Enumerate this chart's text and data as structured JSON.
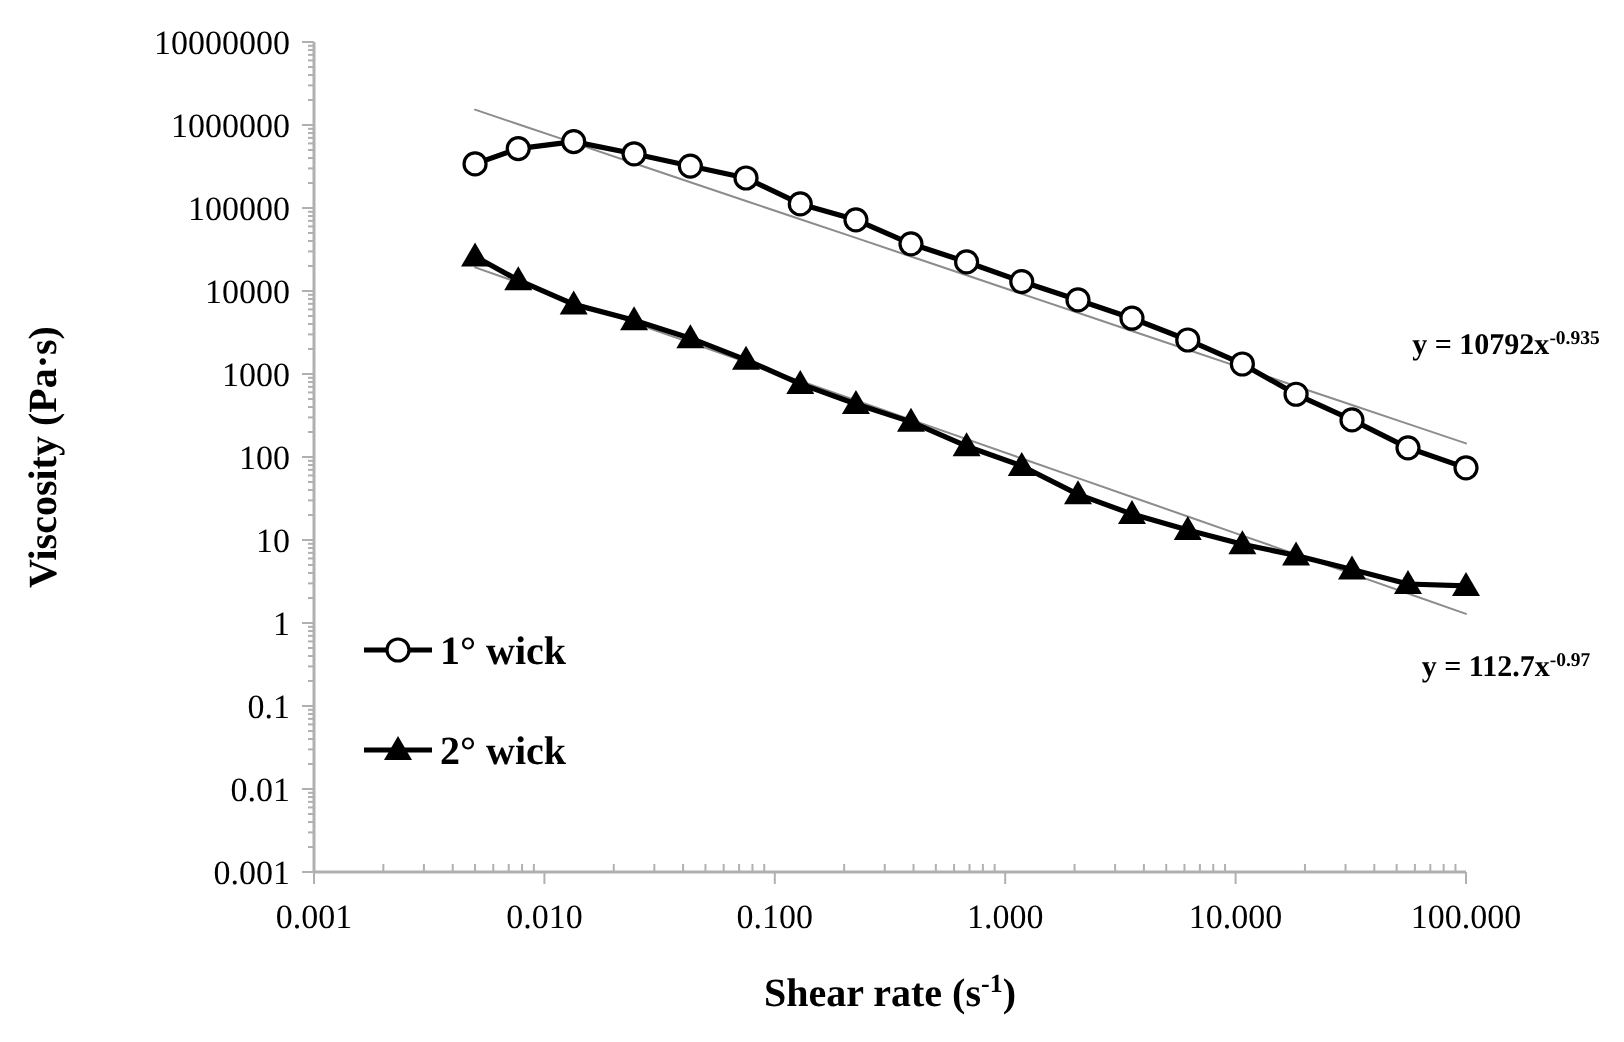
{
  "chart_data": {
    "type": "line",
    "xlabel": "Shear rate (s$^{-1}$)",
    "ylabel": "Viscosity (Pa·s)",
    "log": "xy",
    "grid": false,
    "legend": "bottom left",
    "xlim": [
      0.001,
      100
    ],
    "xticks": [
      0.001,
      {
        "value": 0.01,
        "label": "0.010"
      },
      {
        "value": 0.1,
        "label": "0.100"
      },
      {
        "value": 1,
        "label": "1.000"
      },
      {
        "value": 10,
        "label": "10.000"
      },
      {
        "value": 100,
        "label": "100.000"
      }
    ],
    "ylim": [
      0.001,
      10000000
    ],
    "yticks": [
      0.001,
      0.01,
      0.1,
      1,
      10,
      100,
      1000,
      10000,
      100000,
      1000000,
      10000000
    ],
    "x": [
      0.005,
      0.0077,
      0.0134,
      0.0245,
      0.043,
      0.075,
      0.129,
      0.225,
      0.39,
      0.68,
      1.18,
      2.07,
      3.55,
      6.2,
      10.7,
      18.3,
      32,
      56,
      100
    ],
    "series": [
      {
        "name": "1° wick",
        "color": "#000000",
        "marker": "circle",
        "line_style": "solid",
        "values": [
          340000,
          520000,
          630000,
          450000,
          320000,
          230000,
          112000,
          72000,
          37000,
          22400,
          13000,
          7800,
          4700,
          2570,
          1320,
          570,
          280,
          129,
          74
        ]
      },
      {
        "name": "2° wick",
        "color": "#000000",
        "marker": "triangle",
        "line_style": "solid",
        "values": [
          26000,
          13500,
          6900,
          4450,
          2700,
          1480,
          760,
          435,
          265,
          135,
          78,
          35.5,
          20.5,
          13.2,
          8.9,
          6.5,
          4.4,
          2.95,
          2.8
        ]
      },
      {
        "type": "line",
        "color": "#8c8c8c",
        "marker": "none",
        "line_style": "solid",
        "values": [
          1530000,
          1021000,
          608700,
          345900,
          204600,
          121500,
          73200,
          43600,
          26000,
          15480,
          9240,
          5460,
          3300,
          1960,
          1178,
          713,
          423,
          251,
          146
        ]
      },
      {
        "type": "line",
        "color": "#8c8c8c",
        "marker": "none",
        "line_style": "solid",
        "values": [
          19230,
          12650,
          7400,
          4120,
          2390,
          1390,
          822,
          479,
          281,
          164,
          96,
          55.7,
          33,
          19.2,
          11.3,
          6.72,
          3.91,
          2.27,
          1.29
        ]
      }
    ],
    "annotations": [
      "y = 10792x$^{-0.935}$",
      "y = 112.7x$^{-0.97}$"
    ]
  }
}
